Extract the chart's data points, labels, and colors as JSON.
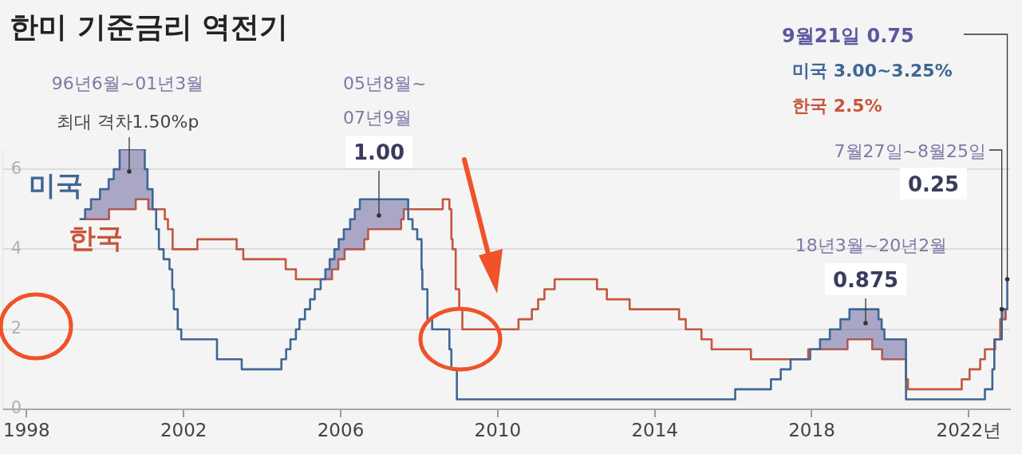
{
  "chart_data": {
    "type": "step",
    "title": "한미 기준금리 역전기",
    "series": [
      {
        "name": "미국",
        "color": "#3f6694",
        "x": [
          1999.35,
          1999.49,
          1999.64,
          1999.87,
          2000.09,
          2000.22,
          2000.37,
          2001.01,
          2001.08,
          2001.21,
          2001.3,
          2001.37,
          2001.49,
          2001.64,
          2001.71,
          2001.75,
          2001.85,
          2001.94,
          2002.85,
          2003.48,
          2004.49,
          2004.61,
          2004.72,
          2004.86,
          2004.95,
          2005.09,
          2005.22,
          2005.34,
          2005.49,
          2005.61,
          2005.72,
          2005.84,
          2005.95,
          2006.08,
          2006.24,
          2006.36,
          2006.49,
          2007.72,
          2007.83,
          2007.95,
          2008.06,
          2008.08,
          2008.21,
          2008.33,
          2008.77,
          2008.82,
          2008.96,
          2016.05,
          2016.96,
          2017.21,
          2017.46,
          2017.96,
          2018.21,
          2018.46,
          2018.73,
          2018.96,
          2019.7,
          2019.78,
          2019.85,
          2020.4,
          2022.41,
          2022.6,
          2022.65,
          2022.84,
          2022.98,
          2023.0
        ],
        "values": [
          4.75,
          5.0,
          5.25,
          5.5,
          5.75,
          6.0,
          6.5,
          6.0,
          5.5,
          5.0,
          4.5,
          4.0,
          3.75,
          3.5,
          3.0,
          2.5,
          2.0,
          1.75,
          1.25,
          1.0,
          1.25,
          1.5,
          1.75,
          2.0,
          2.25,
          2.5,
          2.75,
          3.0,
          3.25,
          3.5,
          3.75,
          4.0,
          4.25,
          4.5,
          4.75,
          5.0,
          5.25,
          4.75,
          4.5,
          4.25,
          3.5,
          3.0,
          2.25,
          2.0,
          1.5,
          1.0,
          0.25,
          0.5,
          0.75,
          1.0,
          1.25,
          1.5,
          1.75,
          2.0,
          2.25,
          2.5,
          2.25,
          2.0,
          1.75,
          0.25,
          0.5,
          1.0,
          1.75,
          2.5,
          3.25,
          3.25
        ]
      },
      {
        "name": "한국",
        "color": "#c8553a",
        "x": [
          1999.35,
          2000.1,
          2000.78,
          2001.1,
          2001.52,
          2001.6,
          2001.72,
          2002.35,
          2003.35,
          2003.52,
          2004.6,
          2004.86,
          2005.78,
          2005.94,
          2006.1,
          2006.6,
          2006.7,
          2007.54,
          2007.61,
          2008.6,
          2008.77,
          2008.82,
          2008.85,
          2008.93,
          2009.02,
          2009.1,
          2010.53,
          2010.87,
          2011.03,
          2011.19,
          2011.45,
          2012.53,
          2012.78,
          2013.36,
          2014.62,
          2014.79,
          2015.19,
          2015.45,
          2016.45,
          2017.91,
          2018.91,
          2019.54,
          2019.79,
          2020.4,
          2020.45,
          2021.82,
          2022.02,
          2022.29,
          2022.41,
          2022.67,
          2022.8,
          2022.94,
          2023.0
        ],
        "values": [
          4.75,
          5.0,
          5.25,
          5.0,
          4.75,
          4.5,
          4.0,
          4.25,
          4.0,
          3.75,
          3.5,
          3.25,
          3.5,
          3.75,
          4.0,
          4.25,
          4.5,
          4.75,
          5.0,
          5.25,
          5.0,
          4.25,
          4.0,
          3.0,
          2.5,
          2.0,
          2.25,
          2.5,
          2.75,
          3.0,
          3.25,
          3.0,
          2.75,
          2.5,
          2.25,
          2.0,
          1.75,
          1.5,
          1.25,
          1.5,
          1.75,
          1.5,
          1.25,
          0.75,
          0.5,
          0.75,
          1.0,
          1.25,
          1.5,
          1.75,
          2.25,
          2.5,
          2.5
        ]
      }
    ],
    "xlim": [
      1997.4,
      2023.05
    ],
    "xticks": [
      1998,
      2002,
      2006,
      2010,
      2014,
      2018,
      {
        "value": 2022,
        "label": "2022년"
      }
    ],
    "ylim": [
      0,
      6.5
    ],
    "yticks": [
      0,
      2,
      4,
      6
    ],
    "grid": "y",
    "annotations": [
      "96년6월~01년3월\n최대 격차1.50%p",
      "05년8월~\n07년9월\n1.00",
      "18년3월~20년2월\n0.875",
      {
        "text": "7월27일~8월25일\n0.25",
        "x": 2022.84,
        "y": 2.5
      },
      {
        "text": "9월21일 0.75\n미국 3.00~3.25%\n한국 2.5%",
        "x": 2022.98,
        "y": 3.25
      }
    ]
  }
}
